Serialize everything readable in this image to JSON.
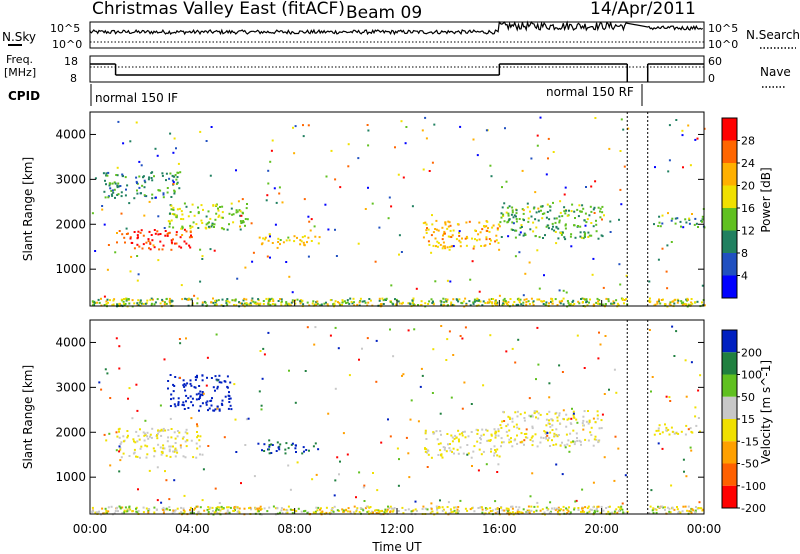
{
  "header": {
    "title": "Christmas Valley East (fitACF)",
    "beam": "Beam 09",
    "date": "14/Apr/2011"
  },
  "top_panels": {
    "nsky_label": "N.Sky",
    "nsky_ticks": [
      "10^5",
      "10^0"
    ],
    "nsearch_label": "N.Search",
    "nsearch_ticks": [
      "10^5",
      "10^0"
    ],
    "freq_label_1": "Freq.",
    "freq_label_2": "[MHz]",
    "freq_ticks": [
      "18",
      "8"
    ],
    "nave_label": "Nave",
    "nave_ticks": [
      "60",
      "0"
    ],
    "cpid_label": "CPID",
    "cpid_segments": [
      "normal 150 IF",
      "normal 150 RF"
    ]
  },
  "power_panel": {
    "ylabel": "Slant Range [km]",
    "colorbar_label": "Power [dB]",
    "colorbar_ticks": [
      "28",
      "24",
      "20",
      "16",
      "12",
      "8",
      "4"
    ],
    "colorbar_colors": [
      "#ff0000",
      "#ff6600",
      "#ffb000",
      "#f0e000",
      "#60c020",
      "#208060",
      "#2050c0",
      "#0000ff"
    ]
  },
  "velocity_panel": {
    "ylabel": "Slant Range [km]",
    "colorbar_label": "Velocity [m s^-1]",
    "colorbar_ticks": [
      "200",
      "100",
      "50",
      "15",
      "-15",
      "-50",
      "-100",
      "-200"
    ],
    "colorbar_colors": [
      "#0020c0",
      "#208040",
      "#60c020",
      "#c8c8c8",
      "#f0e000",
      "#ffa000",
      "#ff6000",
      "#ff0000"
    ]
  },
  "xaxis": {
    "label": "Time UT",
    "ticks": [
      "00:00",
      "04:00",
      "08:00",
      "12:00",
      "16:00",
      "20:00",
      "00:00"
    ]
  },
  "chart_data": {
    "type": "heatmap",
    "title": "Christmas Valley East (fitACF) Beam 09 14/Apr/2011",
    "xlabel": "Time UT",
    "ylabel": "Slant Range [km]",
    "xlim_hours": [
      0,
      24
    ],
    "ylim_km": [
      180,
      4500
    ],
    "y_ticks": [
      1000,
      2000,
      3000,
      4000
    ],
    "panels": [
      {
        "name": "Power",
        "unit": "dB",
        "color_range": [
          0,
          30
        ],
        "echo_regions": [
          {
            "t_start": 1.0,
            "t_end": 4.0,
            "range_start": 1450,
            "range_end": 1900,
            "value": 26
          },
          {
            "t_start": 3.0,
            "t_end": 6.2,
            "range_start": 1900,
            "range_end": 2500,
            "value": 14
          },
          {
            "t_start": 0.5,
            "t_end": 3.5,
            "range_start": 2600,
            "range_end": 3200,
            "value": 10
          },
          {
            "t_start": 6.5,
            "t_end": 9.0,
            "range_start": 1550,
            "range_end": 1800,
            "value": 18
          },
          {
            "t_start": 13.0,
            "t_end": 16.0,
            "range_start": 1450,
            "range_end": 2100,
            "value": 20
          },
          {
            "t_start": 16.0,
            "t_end": 20.0,
            "range_start": 1700,
            "range_end": 2500,
            "value": 12
          },
          {
            "t_start": 22.0,
            "t_end": 24.0,
            "range_start": 1950,
            "range_end": 2200,
            "value": 10
          }
        ]
      },
      {
        "name": "Velocity",
        "unit": "m s^-1",
        "color_range": [
          -200,
          200
        ],
        "echo_regions": [
          {
            "t_start": 1.0,
            "t_end": 4.5,
            "range_start": 1450,
            "range_end": 2100,
            "value": 0
          },
          {
            "t_start": 3.0,
            "t_end": 5.5,
            "range_start": 2500,
            "range_end": 3300,
            "value": 200
          },
          {
            "t_start": 6.5,
            "t_end": 9.0,
            "range_start": 1550,
            "range_end": 1800,
            "value": 150
          },
          {
            "t_start": 13.0,
            "t_end": 16.0,
            "range_start": 1450,
            "range_end": 2100,
            "value": 0
          },
          {
            "t_start": 16.0,
            "t_end": 20.0,
            "range_start": 1700,
            "range_end": 2500,
            "value": 0
          },
          {
            "t_start": 22.0,
            "t_end": 24.0,
            "range_start": 1950,
            "range_end": 2200,
            "value": 0
          }
        ]
      }
    ],
    "data_gap_hours": [
      21.0,
      21.8
    ]
  }
}
